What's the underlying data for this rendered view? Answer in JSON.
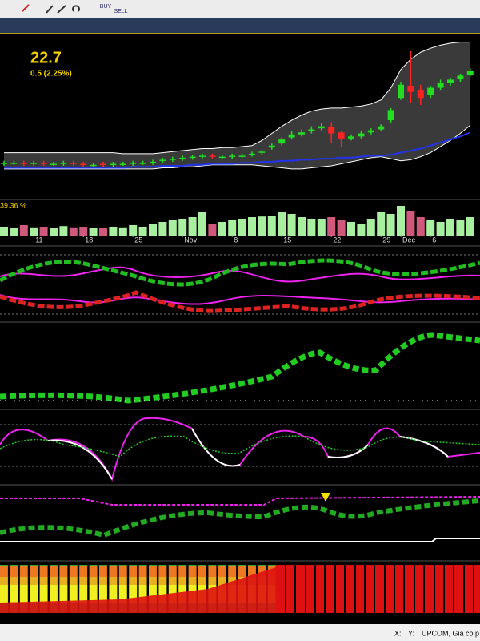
{
  "toolbar": {
    "buy": "BUY",
    "sell": "SELL"
  },
  "status_bar": {
    "x": "X:",
    "y": "Y:",
    "source": "UPCOM, Gia co p"
  },
  "chart_data": {
    "type": "candlestick",
    "last_price": 22.7,
    "change_label": "0.5 (2.25%)",
    "volume_label": "39.36 %",
    "categories": [
      null,
      null,
      null,
      "11",
      null,
      null,
      null,
      null,
      "18",
      null,
      null,
      null,
      null,
      "25",
      null,
      null,
      null,
      null,
      "Nov",
      null,
      null,
      null,
      null,
      "8",
      null,
      null,
      null,
      null,
      "15",
      null,
      null,
      null,
      null,
      "22",
      null,
      null,
      null,
      null,
      "29",
      null,
      "Dec",
      null,
      null,
      "6",
      null,
      null,
      null,
      null
    ],
    "open": [
      13.5,
      13.6,
      13.6,
      13.5,
      13.6,
      13.5,
      13.5,
      13.6,
      13.5,
      13.4,
      13.5,
      13.4,
      13.5,
      13.5,
      13.6,
      13.6,
      13.8,
      13.9,
      14.0,
      14.1,
      14.2,
      14.3,
      14.2,
      14.2,
      14.3,
      14.4,
      14.6,
      15.1,
      15.5,
      16.1,
      16.4,
      16.7,
      17.0,
      17.1,
      16.6,
      16.0,
      16.2,
      16.6,
      16.9,
      17.8,
      20.0,
      21.2,
      20.8,
      20.3,
      21.0,
      21.5,
      21.9,
      22.3
    ],
    "high": [
      13.8,
      13.8,
      13.8,
      13.8,
      13.8,
      13.7,
      13.8,
      13.8,
      13.7,
      13.6,
      13.7,
      13.7,
      13.7,
      13.8,
      13.8,
      13.9,
      14.1,
      14.2,
      14.3,
      14.4,
      14.5,
      14.5,
      14.4,
      14.5,
      14.5,
      14.7,
      14.9,
      15.5,
      16.1,
      16.7,
      16.9,
      17.2,
      17.5,
      17.6,
      16.8,
      16.4,
      16.7,
      17.0,
      17.4,
      19.0,
      21.6,
      24.6,
      21.3,
      21.2,
      21.8,
      22.0,
      22.4,
      22.9
    ],
    "low": [
      13.3,
      13.4,
      13.3,
      13.3,
      13.3,
      13.3,
      13.3,
      13.3,
      13.2,
      13.2,
      13.2,
      13.2,
      13.3,
      13.3,
      13.4,
      13.4,
      13.6,
      13.7,
      13.8,
      13.9,
      14.0,
      14.0,
      14.0,
      14.0,
      14.1,
      14.2,
      14.4,
      14.9,
      15.3,
      15.9,
      16.2,
      16.5,
      16.8,
      15.6,
      15.2,
      15.8,
      16.0,
      16.4,
      16.7,
      17.5,
      19.8,
      19.5,
      19.3,
      20.0,
      20.8,
      21.2,
      21.6,
      22.1
    ],
    "close": [
      13.6,
      13.6,
      13.5,
      13.6,
      13.5,
      13.5,
      13.6,
      13.5,
      13.4,
      13.4,
      13.4,
      13.5,
      13.5,
      13.6,
      13.6,
      13.7,
      13.9,
      14.0,
      14.1,
      14.2,
      14.3,
      14.2,
      14.2,
      14.3,
      14.3,
      14.5,
      14.7,
      15.3,
      15.9,
      16.4,
      16.6,
      16.9,
      17.2,
      16.5,
      16.0,
      16.2,
      16.5,
      16.8,
      17.2,
      18.8,
      21.3,
      20.6,
      20.0,
      21.0,
      21.5,
      21.8,
      22.2,
      22.7
    ],
    "upper_band": [
      14.6,
      14.6,
      14.6,
      14.6,
      14.6,
      14.6,
      14.6,
      14.6,
      14.6,
      14.6,
      14.6,
      14.6,
      14.5,
      14.5,
      14.5,
      14.5,
      14.6,
      14.7,
      14.8,
      14.9,
      15.0,
      15.0,
      15.1,
      15.1,
      15.2,
      15.3,
      15.8,
      16.5,
      17.2,
      17.8,
      18.3,
      18.7,
      18.9,
      19.0,
      19.0,
      19.1,
      19.2,
      19.4,
      19.8,
      21.0,
      22.8,
      23.8,
      24.5,
      24.9,
      25.2,
      25.4,
      25.5,
      25.5
    ],
    "lower_band": [
      13.0,
      13.0,
      13.0,
      13.0,
      13.0,
      13.0,
      13.0,
      13.0,
      13.0,
      13.0,
      13.0,
      13.0,
      13.0,
      13.0,
      13.0,
      13.0,
      13.1,
      13.1,
      13.2,
      13.2,
      13.3,
      13.4,
      13.4,
      13.4,
      13.4,
      13.4,
      13.3,
      13.2,
      13.1,
      13.0,
      13.0,
      13.1,
      13.2,
      13.3,
      13.5,
      13.7,
      13.9,
      14.1,
      14.2,
      14.0,
      13.8,
      13.9,
      14.2,
      14.6,
      15.2,
      15.8,
      16.5,
      17.3
    ],
    "ma": [
      13.1,
      13.1,
      13.1,
      13.1,
      13.1,
      13.1,
      13.1,
      13.1,
      13.1,
      13.1,
      13.1,
      13.1,
      13.1,
      13.2,
      13.2,
      13.2,
      13.3,
      13.3,
      13.3,
      13.4,
      13.4,
      13.5,
      13.5,
      13.5,
      13.6,
      13.6,
      13.7,
      13.7,
      13.8,
      13.8,
      13.9,
      13.9,
      14.0,
      14.0,
      14.1,
      14.1,
      14.2,
      14.3,
      14.3,
      14.4,
      14.6,
      14.8,
      15.0,
      15.3,
      15.6,
      15.9,
      16.2,
      16.6
    ],
    "ylim": [
      10.3,
      26.1
    ],
    "volume": [
      30,
      25,
      35,
      28,
      30,
      25,
      32,
      28,
      30,
      27,
      25,
      30,
      28,
      35,
      30,
      40,
      45,
      50,
      55,
      60,
      75,
      40,
      45,
      50,
      55,
      60,
      62,
      65,
      75,
      70,
      60,
      55,
      55,
      60,
      50,
      45,
      40,
      55,
      75,
      70,
      95,
      80,
      60,
      50,
      45,
      55,
      50,
      60
    ],
    "volume_ylim": [
      0,
      100
    ],
    "up_color": "#22dd22",
    "down_color": "#ff2222",
    "band_color": "#ffffff",
    "ma_color": "#2233ee",
    "volume_up_color": "#a8f0a0",
    "volume_down_color": "#d0587a"
  }
}
